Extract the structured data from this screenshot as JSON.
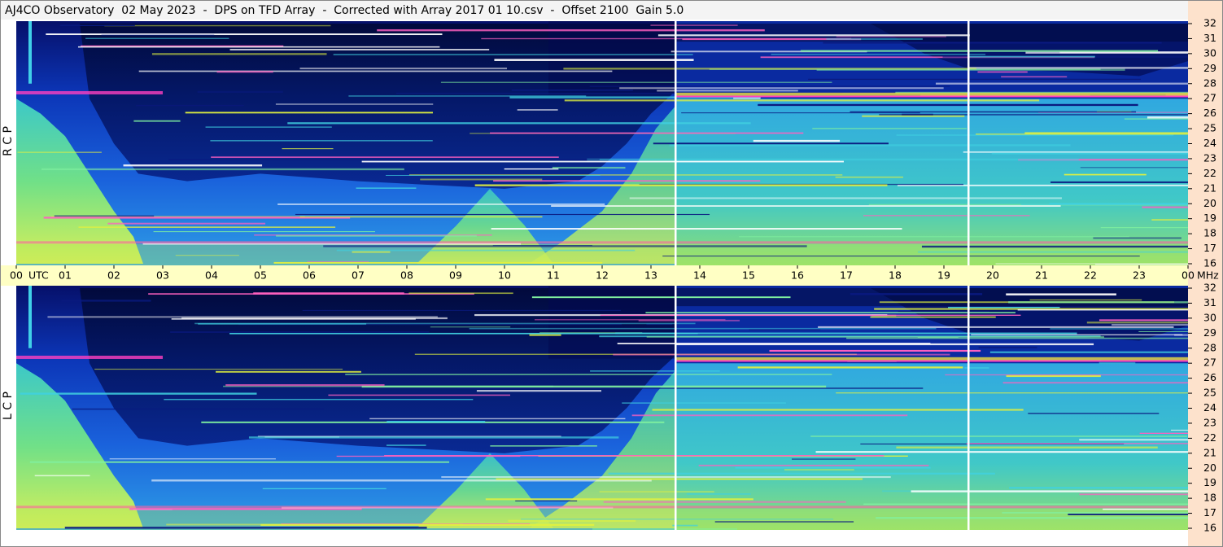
{
  "chart_data": {
    "type": "spectrogram",
    "title": "AJ4CO Observatory  02 May 2023  -  DPS on TFD Array  -  Corrected with Array 2017 01 10.csv  -  Offset 2100  Gain 5.0",
    "panels": [
      "R C P",
      "L C P"
    ],
    "x_unit": "UTC",
    "y_unit": "MHz",
    "xlim": [
      0,
      24
    ],
    "xticks": [
      {
        "value": 0,
        "label": "00"
      },
      {
        "value": 1,
        "label": "01"
      },
      {
        "value": 2,
        "label": "02"
      },
      {
        "value": 3,
        "label": "03"
      },
      {
        "value": 4,
        "label": "04"
      },
      {
        "value": 5,
        "label": "05"
      },
      {
        "value": 6,
        "label": "06"
      },
      {
        "value": 7,
        "label": "07"
      },
      {
        "value": 8,
        "label": "08"
      },
      {
        "value": 9,
        "label": "09"
      },
      10,
      11,
      12,
      13,
      14,
      15,
      16,
      17,
      18,
      19,
      20,
      21,
      22,
      23,
      {
        "value": 24,
        "label": "00"
      }
    ],
    "ylim": [
      16,
      32
    ],
    "yticks": [
      16,
      17,
      18,
      19,
      20,
      21,
      22,
      23,
      24,
      25,
      26,
      27,
      28,
      29,
      30,
      31,
      32
    ]
  }
}
